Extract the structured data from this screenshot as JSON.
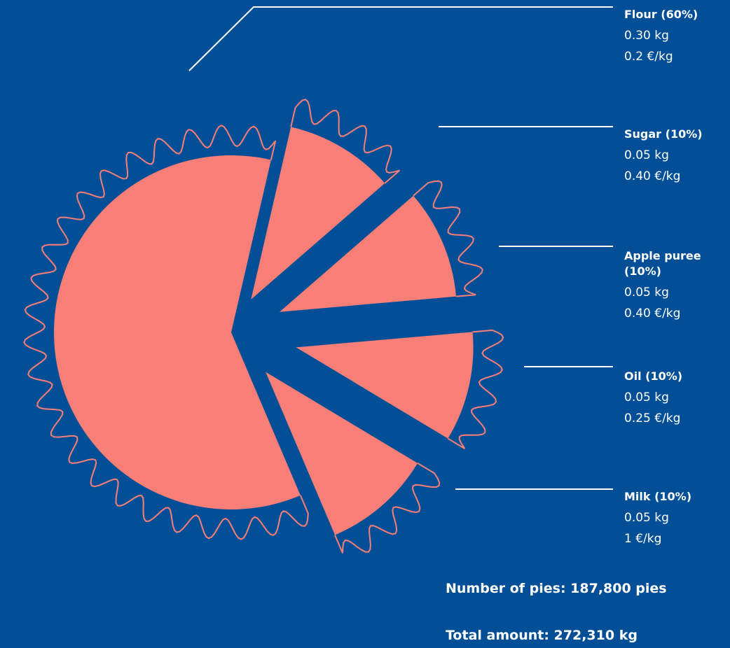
{
  "chart_data": {
    "type": "pie",
    "slices": [
      {
        "name": "Flour (60%)",
        "percent": 60,
        "amount": "0.30 kg",
        "price": "0.2 €/kg"
      },
      {
        "name": "Sugar (10%)",
        "percent": 10,
        "amount": "0.05 kg",
        "price": "0.40 €/kg"
      },
      {
        "name": "Apple puree (10%)",
        "percent": 10,
        "amount": "0.05 kg",
        "price": "0.40 €/kg"
      },
      {
        "name": "Oil (10%)",
        "percent": 10,
        "amount": "0.05 kg",
        "price": "0.25 €/kg"
      },
      {
        "name": "Milk (10%)",
        "percent": 10,
        "amount": "0.05 kg",
        "price": "1 €/kg"
      }
    ]
  },
  "labels": [
    {
      "name": "Flour (60%)",
      "amount": "0.30 kg",
      "price": "0.2 €/kg"
    },
    {
      "name": "Sugar (10%)",
      "amount": "0.05 kg",
      "price": "0.40 €/kg"
    },
    {
      "name": "Apple puree (10%)",
      "amount": "0.05 kg",
      "price": "0.40 €/kg"
    },
    {
      "name": "Oil (10%)",
      "amount": "0.05 kg",
      "price": "0.25 €/kg"
    },
    {
      "name": "Milk (10%)",
      "amount": "0.05 kg",
      "price": "1 €/kg"
    }
  ],
  "stats": {
    "pies": "Number of pies: 187,800 pies",
    "total": "Total amount: 272,310 kg"
  },
  "colors": {
    "background": "#034f97",
    "slice": "#f87f77",
    "text": "#ffffff"
  }
}
